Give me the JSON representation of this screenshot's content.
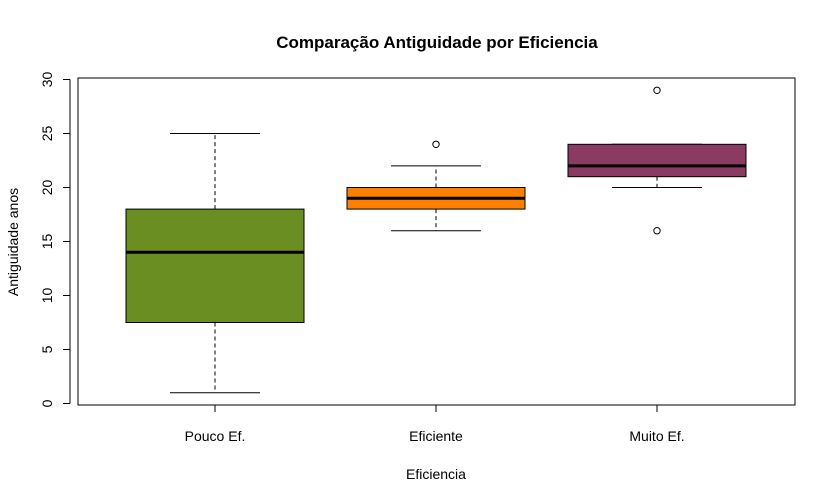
{
  "chart_data": {
    "type": "boxplot",
    "title": "Comparação Antiguidade por Eficiencia",
    "xlabel": "Eficiencia",
    "ylabel": "Antiguidade anos",
    "ylim": [
      0,
      30
    ],
    "yticks": [
      0,
      5,
      10,
      15,
      20,
      25,
      30
    ],
    "grid": false,
    "categories": [
      "Pouco Ef.",
      "Eficiente",
      "Muito Ef."
    ],
    "colors": [
      "#6B8E23",
      "#FF7F00",
      "#8B3A62"
    ],
    "boxes": [
      {
        "category": "Pouco Ef.",
        "whisker_low": 1,
        "q1": 7.5,
        "median": 14,
        "q3": 18,
        "whisker_high": 25,
        "outliers": []
      },
      {
        "category": "Eficiente",
        "whisker_low": 16,
        "q1": 18,
        "median": 19,
        "q3": 20,
        "whisker_high": 22,
        "outliers": [
          24
        ]
      },
      {
        "category": "Muito Ef.",
        "whisker_low": 20,
        "q1": 21,
        "median": 22,
        "q3": 24,
        "whisker_high": 24,
        "outliers": [
          29,
          16
        ]
      }
    ]
  }
}
